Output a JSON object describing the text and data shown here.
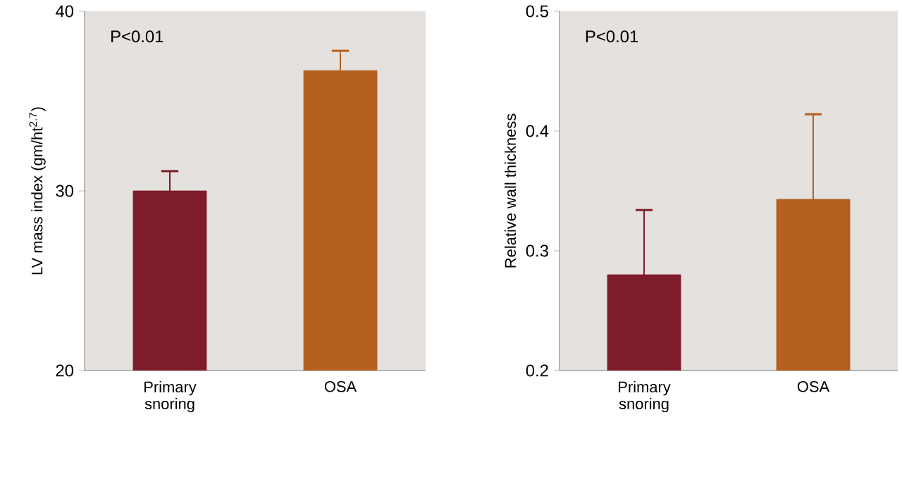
{
  "chart_data": [
    {
      "type": "bar",
      "categories": [
        "Primary snoring",
        "OSA"
      ],
      "values": [
        30.0,
        36.7
      ],
      "colors": [
        "#7e1c2a",
        "#b5601f"
      ],
      "errors": [
        [
          30.0,
          31.1
        ],
        [
          36.7,
          37.8
        ]
      ],
      "ylim": [
        20,
        40
      ],
      "yticks": [
        20,
        30,
        40
      ],
      "ylabel": "LV mass index (gm/ht$^{2.7}$)",
      "annotations": [
        "P<0.01"
      ]
    },
    {
      "type": "bar",
      "categories": [
        "Primary snoring",
        "OSA"
      ],
      "values": [
        0.28,
        0.343
      ],
      "colors": [
        "#7e1c2a",
        "#b5601f"
      ],
      "errors": [
        [
          0.28,
          0.334
        ],
        [
          0.343,
          0.414
        ]
      ],
      "ylim": [
        0.2,
        0.5
      ],
      "yticks": [
        0.2,
        0.3,
        0.4,
        0.5
      ],
      "ylabel": "Relative wall thickness",
      "annotations": [
        "P<0.01"
      ]
    }
  ]
}
